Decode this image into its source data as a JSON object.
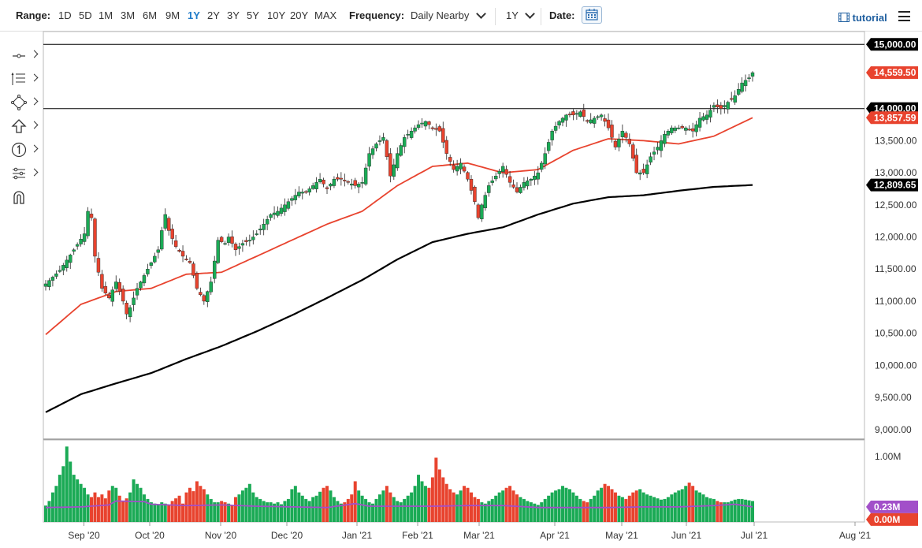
{
  "toolbar": {
    "range_label": "Range:",
    "ranges": [
      "1D",
      "5D",
      "1M",
      "3M",
      "6M",
      "9M",
      "1Y",
      "2Y",
      "3Y",
      "5Y",
      "10Y",
      "20Y",
      "MAX"
    ],
    "active_range": "1Y",
    "frequency_label": "Frequency:",
    "frequency_value": "Daily Nearby",
    "period_value": "1Y",
    "date_label": "Date:",
    "tutorial_label": "tutorial"
  },
  "side_tools": [
    "crosshair-icon",
    "indicators-icon",
    "draw-shapes-icon",
    "arrow-up-icon",
    "number-one-icon",
    "compare-icon",
    "magnet-icon"
  ],
  "colors": {
    "up": "#1aaa55",
    "down": "#e8432e",
    "ma50": "#e8432e",
    "ma200": "#000000",
    "vol_ma": "#a24fc9",
    "tag_price": "#e8432e",
    "tag_black": "#000000",
    "tag_purple": "#a24fc9",
    "tag_red": "#e8432e"
  },
  "chart_data": {
    "type": "candlestick",
    "x_ticks": [
      "Sep '20",
      "Oct '20",
      "Nov '20",
      "Dec '20",
      "Jan '21",
      "Feb '21",
      "Mar '21",
      "Apr '21",
      "May '21",
      "Jun '21",
      "Jul '21",
      "Aug '21"
    ],
    "y_ticks": [
      "15,000.00",
      "14,000.00",
      "13,500.00",
      "13,000.00",
      "12,500.00",
      "12,000.00",
      "11,500.00",
      "11,000.00",
      "10,500.00",
      "10,000.00",
      "9,500.00",
      "9,000.00"
    ],
    "ylim": [
      8850,
      15200
    ],
    "horizontal_lines": [
      15000,
      14000
    ],
    "last_price": {
      "label": "14,559.50",
      "value": 14559.5
    },
    "ma50": {
      "label": "13,857.59",
      "value": 13857.59
    },
    "ma200": {
      "label": "12,809.65",
      "value": 12809.65
    },
    "close_path": [
      [
        0,
        11270
      ],
      [
        4,
        11480
      ],
      [
        8,
        11800
      ],
      [
        11,
        12050
      ],
      [
        12,
        12400
      ],
      [
        13,
        12300
      ],
      [
        14,
        11700
      ],
      [
        16,
        11200
      ],
      [
        18,
        11050
      ],
      [
        20,
        11300
      ],
      [
        22,
        11000
      ],
      [
        23,
        10800
      ],
      [
        24,
        10900
      ],
      [
        26,
        11200
      ],
      [
        28,
        11400
      ],
      [
        30,
        11600
      ],
      [
        32,
        11800
      ],
      [
        33,
        12100
      ],
      [
        34,
        12350
      ],
      [
        35,
        12100
      ],
      [
        37,
        11850
      ],
      [
        39,
        11700
      ],
      [
        41,
        11600
      ],
      [
        43,
        11200
      ],
      [
        45,
        11000
      ],
      [
        47,
        11300
      ],
      [
        49,
        11950
      ],
      [
        51,
        11900
      ],
      [
        52,
        12000
      ],
      [
        54,
        11800
      ],
      [
        56,
        11900
      ],
      [
        58,
        11950
      ],
      [
        60,
        12050
      ],
      [
        62,
        12200
      ],
      [
        64,
        12350
      ],
      [
        66,
        12400
      ],
      [
        68,
        12500
      ],
      [
        70,
        12600
      ],
      [
        72,
        12700
      ],
      [
        74,
        12700
      ],
      [
        76,
        12800
      ],
      [
        78,
        12900
      ],
      [
        80,
        12750
      ],
      [
        82,
        12900
      ],
      [
        84,
        12900
      ],
      [
        86,
        12850
      ],
      [
        88,
        12800
      ],
      [
        90,
        12850
      ],
      [
        92,
        13300
      ],
      [
        94,
        13450
      ],
      [
        96,
        13550
      ],
      [
        98,
        12950
      ],
      [
        100,
        13300
      ],
      [
        102,
        13550
      ],
      [
        104,
        13650
      ],
      [
        106,
        13750
      ],
      [
        108,
        13800
      ],
      [
        110,
        13700
      ],
      [
        112,
        13650
      ],
      [
        114,
        13300
      ],
      [
        116,
        13050
      ],
      [
        118,
        13150
      ],
      [
        120,
        12900
      ],
      [
        122,
        12550
      ],
      [
        123,
        12300
      ],
      [
        124,
        12500
      ],
      [
        126,
        12800
      ],
      [
        128,
        12950
      ],
      [
        130,
        13100
      ],
      [
        132,
        12850
      ],
      [
        134,
        12700
      ],
      [
        136,
        12850
      ],
      [
        138,
        12900
      ],
      [
        140,
        13000
      ],
      [
        142,
        13300
      ],
      [
        144,
        13650
      ],
      [
        146,
        13800
      ],
      [
        148,
        13900
      ],
      [
        150,
        13900
      ],
      [
        152,
        13950
      ],
      [
        154,
        13800
      ],
      [
        156,
        13850
      ],
      [
        158,
        13900
      ],
      [
        160,
        13700
      ],
      [
        162,
        13400
      ],
      [
        164,
        13650
      ],
      [
        166,
        13450
      ],
      [
        168,
        13000
      ],
      [
        170,
        13000
      ],
      [
        172,
        13250
      ],
      [
        174,
        13400
      ],
      [
        176,
        13600
      ],
      [
        178,
        13700
      ],
      [
        180,
        13700
      ],
      [
        182,
        13700
      ],
      [
        184,
        13650
      ],
      [
        186,
        13850
      ],
      [
        188,
        13900
      ],
      [
        190,
        14050
      ],
      [
        192,
        14000
      ],
      [
        194,
        14100
      ],
      [
        196,
        14200
      ],
      [
        198,
        14400
      ],
      [
        200,
        14480
      ],
      [
        201,
        14559.5
      ]
    ],
    "ma50_path": [
      [
        0,
        10480
      ],
      [
        10,
        10950
      ],
      [
        20,
        11150
      ],
      [
        30,
        11200
      ],
      [
        40,
        11420
      ],
      [
        50,
        11450
      ],
      [
        60,
        11700
      ],
      [
        70,
        11950
      ],
      [
        80,
        12200
      ],
      [
        90,
        12400
      ],
      [
        100,
        12800
      ],
      [
        110,
        13100
      ],
      [
        120,
        13150
      ],
      [
        130,
        13000
      ],
      [
        140,
        13050
      ],
      [
        150,
        13350
      ],
      [
        160,
        13530
      ],
      [
        170,
        13500
      ],
      [
        180,
        13450
      ],
      [
        190,
        13570
      ],
      [
        201,
        13857.59
      ]
    ],
    "ma200_path": [
      [
        0,
        9270
      ],
      [
        10,
        9550
      ],
      [
        20,
        9720
      ],
      [
        30,
        9880
      ],
      [
        40,
        10100
      ],
      [
        50,
        10300
      ],
      [
        60,
        10530
      ],
      [
        70,
        10780
      ],
      [
        80,
        11050
      ],
      [
        90,
        11330
      ],
      [
        100,
        11650
      ],
      [
        110,
        11920
      ],
      [
        120,
        12050
      ],
      [
        130,
        12150
      ],
      [
        140,
        12350
      ],
      [
        150,
        12520
      ],
      [
        160,
        12620
      ],
      [
        170,
        12650
      ],
      [
        180,
        12720
      ],
      [
        190,
        12780
      ],
      [
        201,
        12809.65
      ]
    ],
    "volume": {
      "y_ticks": [
        "1.00M"
      ],
      "ylim": [
        0,
        1.25
      ],
      "last_volume_ma": {
        "label": "0.23M",
        "value": 0.23
      },
      "last_volume": {
        "label": "0.00M",
        "value": 0.0
      },
      "bars_approx": [
        0.25,
        0.32,
        0.45,
        0.55,
        0.72,
        0.85,
        1.15,
        0.92,
        0.72,
        0.65,
        0.58,
        0.52,
        0.42,
        0.38,
        0.45,
        0.38,
        0.42,
        0.36,
        0.48,
        0.55,
        0.52,
        0.4,
        0.32,
        0.36,
        0.45,
        0.65,
        0.58,
        0.52,
        0.42,
        0.35,
        0.3,
        0.28,
        0.27,
        0.3,
        0.28,
        0.26,
        0.32,
        0.36,
        0.4,
        0.28,
        0.45,
        0.52,
        0.47,
        0.62,
        0.55,
        0.5,
        0.42,
        0.35,
        0.3,
        0.3,
        0.32,
        0.3,
        0.28,
        0.26,
        0.38,
        0.42,
        0.48,
        0.52,
        0.58,
        0.45,
        0.38,
        0.35,
        0.32,
        0.3,
        0.3,
        0.28,
        0.3,
        0.27,
        0.32,
        0.35,
        0.5,
        0.55,
        0.45,
        0.4,
        0.35,
        0.32,
        0.38,
        0.4,
        0.46,
        0.52,
        0.55,
        0.48,
        0.38,
        0.32,
        0.28,
        0.3,
        0.35,
        0.42,
        0.62,
        0.48,
        0.4,
        0.35,
        0.3,
        0.28,
        0.35,
        0.42,
        0.48,
        0.55,
        0.45,
        0.38,
        0.32,
        0.3,
        0.35,
        0.4,
        0.45,
        0.55,
        0.72,
        0.62,
        0.55,
        0.52,
        0.68,
        0.98,
        0.8,
        0.68,
        0.58,
        0.5,
        0.45,
        0.42,
        0.48,
        0.55,
        0.52,
        0.45,
        0.38,
        0.35,
        0.3,
        0.28,
        0.32,
        0.35,
        0.4,
        0.45,
        0.48,
        0.52,
        0.55,
        0.48,
        0.42,
        0.38,
        0.35,
        0.32,
        0.3,
        0.28,
        0.26,
        0.3,
        0.35,
        0.4,
        0.45,
        0.48,
        0.5,
        0.55,
        0.52,
        0.5,
        0.45,
        0.4,
        0.35,
        0.32,
        0.3,
        0.35,
        0.4,
        0.48,
        0.52,
        0.58,
        0.55,
        0.5,
        0.45,
        0.4,
        0.38,
        0.35,
        0.4,
        0.45,
        0.48,
        0.5,
        0.45,
        0.42,
        0.4,
        0.38,
        0.36,
        0.34,
        0.35,
        0.38,
        0.42,
        0.45,
        0.48,
        0.5,
        0.55,
        0.6,
        0.55,
        0.48,
        0.45,
        0.42,
        0.38,
        0.36,
        0.35,
        0.32,
        0.3,
        0.3,
        0.3,
        0.32,
        0.34,
        0.35,
        0.35,
        0.34,
        0.33,
        0.32
      ]
    },
    "volume_ma_path": [
      [
        0,
        0.22
      ],
      [
        10,
        0.23
      ],
      [
        18,
        0.26
      ],
      [
        20,
        0.32
      ],
      [
        28,
        0.31
      ],
      [
        30,
        0.27
      ],
      [
        40,
        0.25
      ],
      [
        50,
        0.26
      ],
      [
        60,
        0.24
      ],
      [
        70,
        0.23
      ],
      [
        80,
        0.22
      ],
      [
        88,
        0.28
      ],
      [
        92,
        0.24
      ],
      [
        100,
        0.24
      ],
      [
        110,
        0.24
      ],
      [
        120,
        0.25
      ],
      [
        130,
        0.25
      ],
      [
        140,
        0.22
      ],
      [
        150,
        0.22
      ],
      [
        160,
        0.22
      ],
      [
        170,
        0.23
      ],
      [
        180,
        0.23
      ],
      [
        190,
        0.25
      ],
      [
        196,
        0.27
      ],
      [
        201,
        0.23
      ]
    ]
  }
}
